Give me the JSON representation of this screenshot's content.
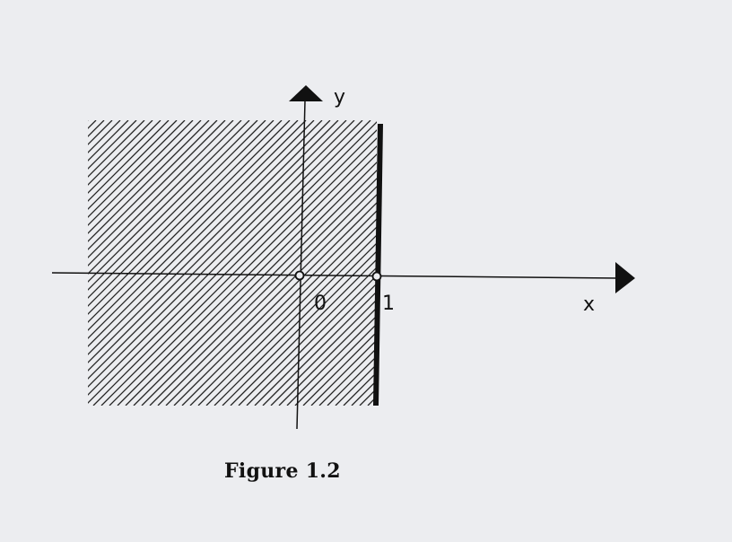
{
  "figure": {
    "caption": "Figure 1.2",
    "x_axis_label": "x",
    "y_axis_label": "y",
    "origin_label": "0",
    "boundary_label": "1",
    "colors": {
      "background": "#ecedf0",
      "ink": "#111111"
    }
  }
}
